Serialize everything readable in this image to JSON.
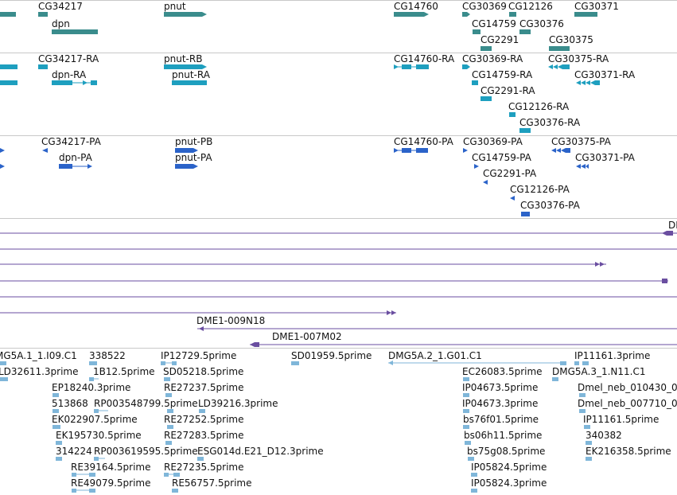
{
  "colors": {
    "gene": "#3a8c8c",
    "transcript": "#1e9fbf",
    "protein": "#2b63c9",
    "alignment": "#6a4ea0",
    "est": "#7fb6d9",
    "separator": "#c8c8c8"
  },
  "tracks": {
    "genes": [
      {
        "label": "CG34217"
      },
      {
        "label": "dpn"
      },
      {
        "label": "pnut"
      },
      {
        "label": "CG14760"
      },
      {
        "label": "CG30369"
      },
      {
        "label": "CG12126"
      },
      {
        "label": "CG30371"
      },
      {
        "label": "CG14759"
      },
      {
        "label": "CG30376"
      },
      {
        "label": "CG2291"
      },
      {
        "label": "CG30375"
      }
    ],
    "transcripts": [
      {
        "label": "CG34217-RA"
      },
      {
        "label": "pnut-RB"
      },
      {
        "label": "CG14760-RA"
      },
      {
        "label": "CG30369-RA"
      },
      {
        "label": "CG30375-RA"
      },
      {
        "label": "dpn-RA"
      },
      {
        "label": "pnut-RA"
      },
      {
        "label": "CG14759-RA"
      },
      {
        "label": "CG30371-RA"
      },
      {
        "label": "CG2291-RA"
      },
      {
        "label": "CG12126-RA"
      },
      {
        "label": "CG30376-RA"
      }
    ],
    "proteins": [
      {
        "label": "CG34217-PA"
      },
      {
        "label": "pnut-PB"
      },
      {
        "label": "CG14760-PA"
      },
      {
        "label": "CG30369-PA"
      },
      {
        "label": "CG30375-PA"
      },
      {
        "label": "dpn-PA"
      },
      {
        "label": "pnut-PA"
      },
      {
        "label": "CG14759-PA"
      },
      {
        "label": "CG30371-PA"
      },
      {
        "label": "CG2291-PA"
      },
      {
        "label": "CG12126-PA"
      },
      {
        "label": "CG30376-PA"
      }
    ],
    "alignments": [
      {
        "label": "DI"
      },
      {
        "label": "DME1-009N18"
      },
      {
        "label": "DME1-007M02"
      }
    ],
    "ests": [
      {
        "label": "MG5A.1_1.I09.C1"
      },
      {
        "label": "338522"
      },
      {
        "label": "IP12729.5prime"
      },
      {
        "label": "SD01959.5prime"
      },
      {
        "label": "DMG5A.2_1.G01.C1"
      },
      {
        "label": "IP11161.3prime"
      },
      {
        "label": "LD32611.3prime"
      },
      {
        "label": "1B12.5prime"
      },
      {
        "label": "SD05218.5prime"
      },
      {
        "label": "EC26083.5prime"
      },
      {
        "label": "DMG5A.3_1.N11.C1"
      },
      {
        "label": "EP18240.3prime"
      },
      {
        "label": "RE27237.5prime"
      },
      {
        "label": "IP04673.5prime"
      },
      {
        "label": "Dmel_neb_010430_0"
      },
      {
        "label": "513868"
      },
      {
        "label": "RP003548799.5prime"
      },
      {
        "label": "LD39216.3prime"
      },
      {
        "label": "IP04673.3prime"
      },
      {
        "label": "Dmel_neb_007710_0"
      },
      {
        "label": "EK022907.5prime"
      },
      {
        "label": "RE27252.5prime"
      },
      {
        "label": "bs76f01.5prime"
      },
      {
        "label": "IP11161.5prime"
      },
      {
        "label": "EK195730.5prime"
      },
      {
        "label": "RE27283.5prime"
      },
      {
        "label": "bs06h11.5prime"
      },
      {
        "label": "340382"
      },
      {
        "label": "314224"
      },
      {
        "label": "RP003619595.5prime"
      },
      {
        "label": "ESG014d.E21_D12.3prime"
      },
      {
        "label": "bs75g08.5prime"
      },
      {
        "label": "EK216358.5prime"
      },
      {
        "label": "RE39164.5prime"
      },
      {
        "label": "RE27235.5prime"
      },
      {
        "label": "IP05824.5prime"
      },
      {
        "label": "RE49079.5prime"
      },
      {
        "label": "RE56757.5prime"
      },
      {
        "label": "IP05824.3prime"
      }
    ]
  }
}
